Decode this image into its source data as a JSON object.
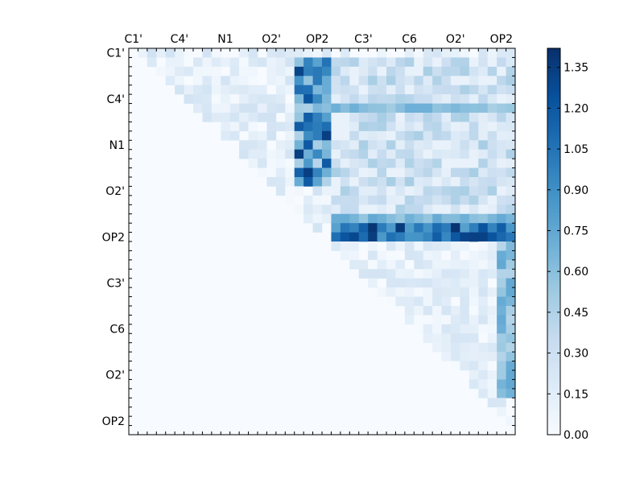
{
  "chart_data": {
    "type": "heatmap",
    "title": "",
    "xlabel": "",
    "ylabel": "",
    "x_tick_labels": [
      "C1'",
      "C4'",
      "N1",
      "O2'",
      "OP2",
      "C3'",
      "C6",
      "O2'",
      "OP2"
    ],
    "y_tick_labels": [
      "C1'",
      "C4'",
      "N1",
      "O2'",
      "OP2",
      "C3'",
      "C6",
      "O2'",
      "OP2"
    ],
    "x_tick_positions": [
      0,
      5,
      10,
      15,
      20,
      25,
      30,
      35,
      40
    ],
    "y_tick_positions": [
      0,
      5,
      10,
      15,
      20,
      25,
      30,
      35,
      40
    ],
    "grid_size": 42,
    "matrix_structure": "upper-triangular",
    "blocks": [
      {
        "rows": [
          0,
          19
        ],
        "cols": [
          0,
          41
        ],
        "fill": "triangular",
        "range": [
          0.0,
          0.35
        ],
        "mean": 0.12
      },
      {
        "rows": [
          1,
          14
        ],
        "cols": [
          18,
          21
        ],
        "range": [
          0.3,
          1.4
        ],
        "mean": 0.85
      },
      {
        "rows": [
          1,
          19
        ],
        "cols": [
          22,
          41
        ],
        "range": [
          0.1,
          0.6
        ],
        "mean": 0.27
      },
      {
        "rows": [
          6,
          6
        ],
        "cols": [
          18,
          41
        ],
        "range": [
          0.4,
          0.7
        ],
        "mean": 0.6
      },
      {
        "rows": [
          18,
          18
        ],
        "cols": [
          22,
          41
        ],
        "range": [
          0.5,
          0.75
        ],
        "mean": 0.65
      },
      {
        "rows": [
          19,
          21
        ],
        "cols": [
          22,
          41
        ],
        "range": [
          0.7,
          1.4
        ],
        "mean": 1.1
      },
      {
        "rows": [
          21,
          41
        ],
        "cols": [
          22,
          41
        ],
        "fill": "triangular",
        "range": [
          0.0,
          0.3
        ],
        "mean": 0.12
      },
      {
        "rows": [
          21,
          37
        ],
        "cols": [
          40,
          41
        ],
        "range": [
          0.35,
          0.75
        ],
        "mean": 0.6
      }
    ],
    "value_range": [
      0.0,
      1.42
    ],
    "colorbar": {
      "colormap": "Blues",
      "ticks": [
        0.0,
        0.15,
        0.3,
        0.45,
        0.6,
        0.75,
        0.9,
        1.05,
        1.2,
        1.35
      ],
      "tick_labels": [
        "0.00",
        "0.15",
        "0.30",
        "0.45",
        "0.60",
        "0.75",
        "0.90",
        "1.05",
        "1.20",
        "1.35"
      ]
    },
    "legend": "none",
    "grid": false
  }
}
